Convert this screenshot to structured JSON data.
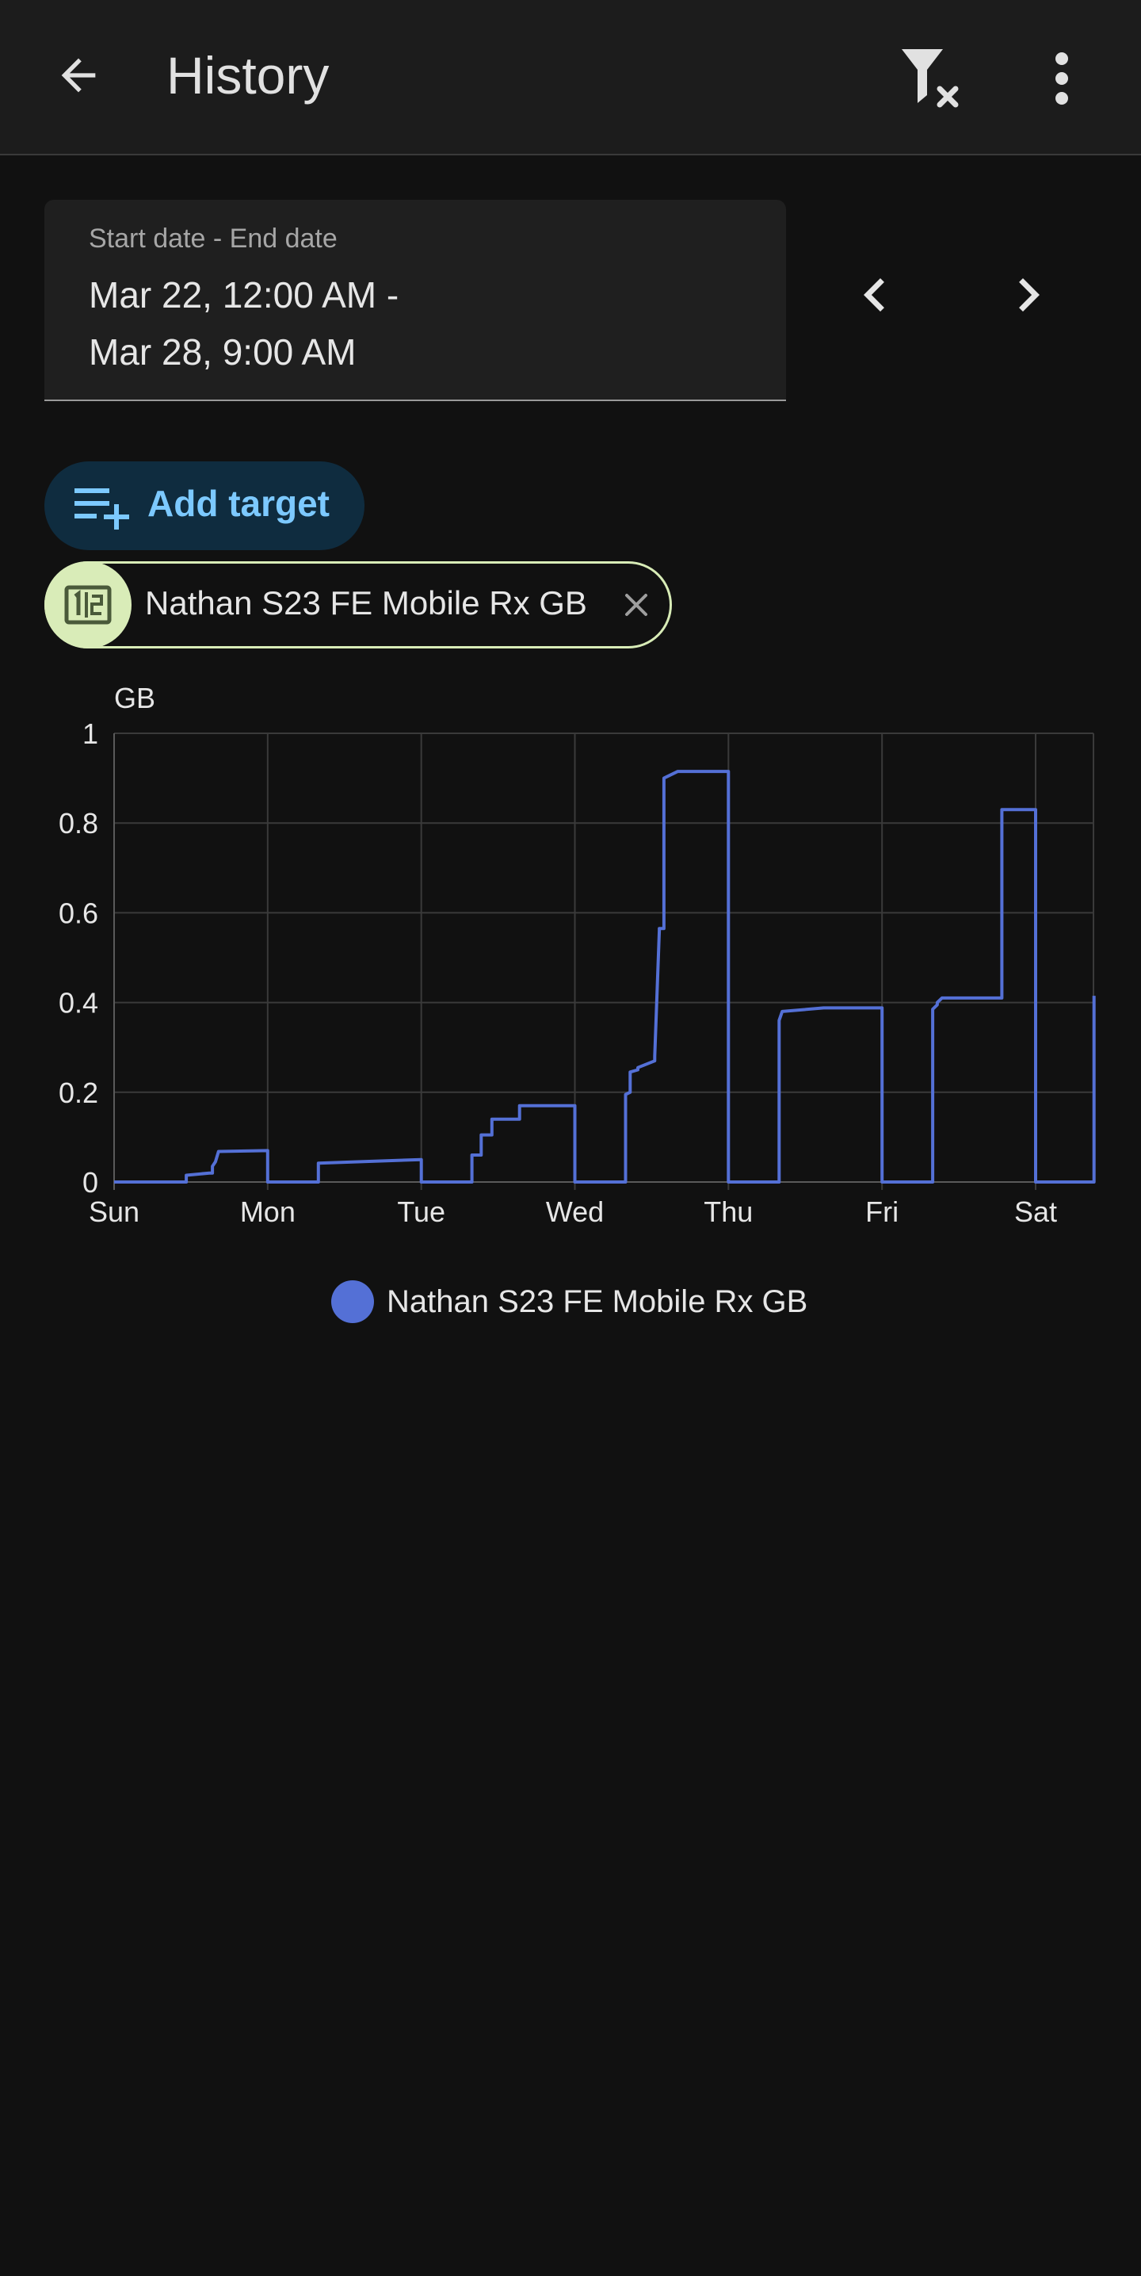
{
  "header": {
    "title": "History",
    "back_icon": "arrow-left-icon",
    "filter_icon": "filter-remove-icon",
    "more_icon": "dots-vertical-icon"
  },
  "date_range": {
    "label": "Start date - End date",
    "value": "Mar 22, 12:00 AM -\nMar 28, 9:00 AM"
  },
  "nav": {
    "prev_icon": "chevron-left-icon",
    "next_icon": "chevron-right-icon"
  },
  "add_target": {
    "label": "Add target",
    "icon": "playlist-plus-icon"
  },
  "target_chip": {
    "label": "Nathan S23 FE Mobile Rx GB",
    "icon": "counter-icon",
    "close_icon": "close-icon"
  },
  "colors": {
    "accent": "#7cc9ff",
    "series": "#5470d6",
    "chip_border": "#d8ecb7",
    "background": "#111111"
  },
  "chart_data": {
    "type": "line",
    "ylabel": "GB",
    "ylim": [
      0,
      1
    ],
    "yticks": [
      "0",
      "0.2",
      "0.4",
      "0.6",
      "0.8",
      "1"
    ],
    "xticks": [
      "Sun",
      "Mon",
      "Tue",
      "Wed",
      "Thu",
      "Fri",
      "Sat"
    ],
    "xlim": [
      0,
      6.38
    ],
    "grid": true,
    "legend_position": "bottom",
    "series": [
      {
        "name": "Nathan S23 FE Mobile Rx GB",
        "step": true,
        "x": [
          0,
          0.47,
          0.47,
          0.62,
          0.64,
          0.64,
          0.66,
          0.68,
          1.0,
          1.0,
          1.33,
          1.33,
          2.0,
          2.0,
          2.33,
          2.33,
          2.39,
          2.39,
          2.46,
          2.46,
          2.64,
          2.64,
          3.0,
          3.0,
          3.33,
          3.33,
          3.36,
          3.36,
          3.41,
          3.41,
          3.52,
          3.52,
          3.55,
          3.55,
          3.58,
          3.58,
          3.67,
          3.67,
          3.67,
          4.0,
          4.0,
          4.33,
          4.33,
          4.35,
          4.35,
          4.62,
          4.62,
          5.0,
          5.0,
          5.33,
          5.33,
          5.36,
          5.36,
          5.39,
          5.39,
          5.78,
          5.78,
          6.0,
          6.0,
          6.38,
          6.38
        ],
        "y": [
          0,
          0,
          0.015,
          0.02,
          0.02,
          0.035,
          0.045,
          0.068,
          0.07,
          0,
          0,
          0.042,
          0.05,
          0,
          0,
          0.06,
          0.06,
          0.105,
          0.105,
          0.14,
          0.14,
          0.17,
          0.17,
          0,
          0,
          0.195,
          0.2,
          0.245,
          0.25,
          0.255,
          0.27,
          0.28,
          0.56,
          0.565,
          0.565,
          0.9,
          0.915,
          0.915,
          0.915,
          0.915,
          0,
          0,
          0.36,
          0.38,
          0.38,
          0.388,
          0.388,
          0.388,
          0,
          0,
          0.385,
          0.395,
          0.4,
          0.41,
          0.41,
          0.41,
          0.83,
          0.83,
          0,
          0,
          0.415
        ]
      }
    ]
  }
}
